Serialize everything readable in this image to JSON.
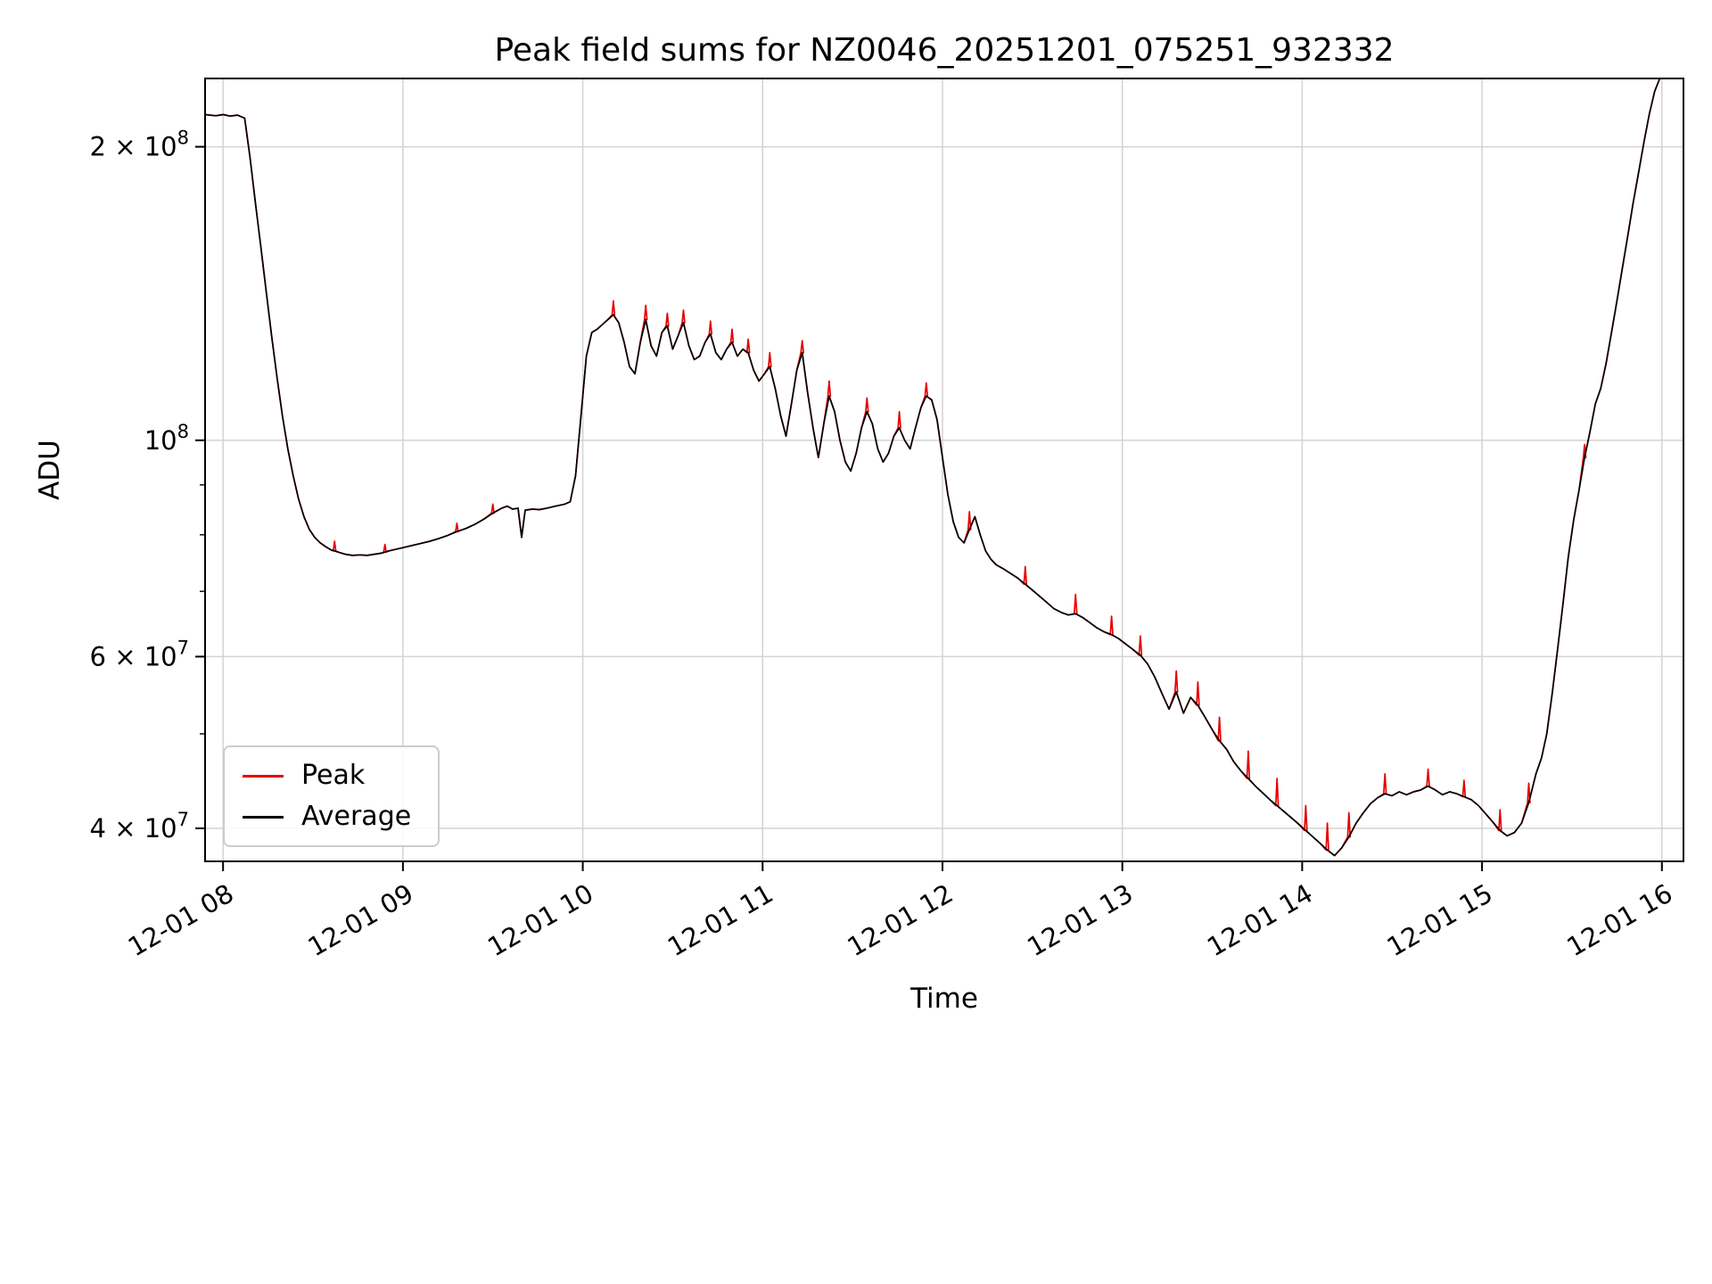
{
  "chart_data": {
    "type": "line",
    "title": "Peak field sums for NZ0046_20251201_075251_932332",
    "xlabel": "Time",
    "ylabel": "ADU",
    "log_y": true,
    "grid": true,
    "grid_color": "#d3d3d3",
    "x_unit": "decimal hours on 2025-12-01",
    "y_unit_factor": 10000000,
    "xlim": [
      7.9,
      16.12
    ],
    "ylim": [
      3.7,
      23.5
    ],
    "x_ticks": [
      {
        "v": 8,
        "label": "12-01 08"
      },
      {
        "v": 9,
        "label": "12-01 09"
      },
      {
        "v": 10,
        "label": "12-01 10"
      },
      {
        "v": 11,
        "label": "12-01 11"
      },
      {
        "v": 12,
        "label": "12-01 12"
      },
      {
        "v": 13,
        "label": "12-01 13"
      },
      {
        "v": 14,
        "label": "12-01 14"
      },
      {
        "v": 15,
        "label": "12-01 15"
      },
      {
        "v": 16,
        "label": "12-01 16"
      }
    ],
    "y_ticks": [
      {
        "v": 4,
        "mant": "4 × 10",
        "exp": "7"
      },
      {
        "v": 6,
        "mant": "6 × 10",
        "exp": "7"
      },
      {
        "v": 10,
        "mant": "10",
        "exp": "8"
      },
      {
        "v": 20,
        "mant": "2 × 10",
        "exp": "8"
      }
    ],
    "y_minor_ticks": [
      5,
      7,
      8,
      9
    ],
    "legend_entries": [
      {
        "label": "Peak",
        "color": "#e60000"
      },
      {
        "label": "Average",
        "color": "#000000"
      }
    ],
    "series": [
      {
        "name": "Average",
        "color": "#000000",
        "points": [
          [
            7.9,
            21.58
          ],
          [
            7.96,
            21.52
          ],
          [
            8.0,
            21.58
          ],
          [
            8.04,
            21.5
          ],
          [
            8.08,
            21.55
          ],
          [
            8.12,
            21.4
          ],
          [
            8.15,
            19.5
          ],
          [
            8.18,
            17.5
          ],
          [
            8.21,
            15.8
          ],
          [
            8.24,
            14.2
          ],
          [
            8.27,
            12.8
          ],
          [
            8.3,
            11.6
          ],
          [
            8.33,
            10.6
          ],
          [
            8.36,
            9.8
          ],
          [
            8.39,
            9.2
          ],
          [
            8.42,
            8.7
          ],
          [
            8.45,
            8.35
          ],
          [
            8.48,
            8.1
          ],
          [
            8.51,
            7.95
          ],
          [
            8.54,
            7.85
          ],
          [
            8.57,
            7.78
          ],
          [
            8.6,
            7.72
          ],
          [
            8.64,
            7.68
          ],
          [
            8.68,
            7.64
          ],
          [
            8.72,
            7.62
          ],
          [
            8.76,
            7.63
          ],
          [
            8.8,
            7.62
          ],
          [
            8.84,
            7.64
          ],
          [
            8.88,
            7.66
          ],
          [
            8.92,
            7.7
          ],
          [
            8.96,
            7.73
          ],
          [
            9.0,
            7.76
          ],
          [
            9.05,
            7.8
          ],
          [
            9.1,
            7.84
          ],
          [
            9.15,
            7.88
          ],
          [
            9.2,
            7.93
          ],
          [
            9.25,
            7.99
          ],
          [
            9.3,
            8.06
          ],
          [
            9.35,
            8.12
          ],
          [
            9.4,
            8.2
          ],
          [
            9.45,
            8.3
          ],
          [
            9.5,
            8.42
          ],
          [
            9.55,
            8.52
          ],
          [
            9.58,
            8.56
          ],
          [
            9.61,
            8.5
          ],
          [
            9.64,
            8.52
          ],
          [
            9.66,
            7.95
          ],
          [
            9.68,
            8.48
          ],
          [
            9.72,
            8.5
          ],
          [
            9.76,
            8.49
          ],
          [
            9.8,
            8.52
          ],
          [
            9.85,
            8.56
          ],
          [
            9.9,
            8.6
          ],
          [
            9.93,
            8.65
          ],
          [
            9.96,
            9.2
          ],
          [
            9.99,
            10.6
          ],
          [
            10.02,
            12.2
          ],
          [
            10.05,
            12.9
          ],
          [
            10.08,
            13.0
          ],
          [
            10.11,
            13.15
          ],
          [
            10.14,
            13.3
          ],
          [
            10.17,
            13.45
          ],
          [
            10.2,
            13.2
          ],
          [
            10.23,
            12.6
          ],
          [
            10.26,
            11.9
          ],
          [
            10.29,
            11.7
          ],
          [
            10.32,
            12.6
          ],
          [
            10.35,
            13.3
          ],
          [
            10.38,
            12.5
          ],
          [
            10.41,
            12.2
          ],
          [
            10.44,
            12.9
          ],
          [
            10.47,
            13.1
          ],
          [
            10.5,
            12.4
          ],
          [
            10.53,
            12.8
          ],
          [
            10.56,
            13.2
          ],
          [
            10.59,
            12.5
          ],
          [
            10.62,
            12.1
          ],
          [
            10.65,
            12.2
          ],
          [
            10.68,
            12.6
          ],
          [
            10.71,
            12.85
          ],
          [
            10.74,
            12.3
          ],
          [
            10.77,
            12.1
          ],
          [
            10.8,
            12.4
          ],
          [
            10.83,
            12.6
          ],
          [
            10.86,
            12.2
          ],
          [
            10.89,
            12.4
          ],
          [
            10.92,
            12.3
          ],
          [
            10.95,
            11.8
          ],
          [
            10.98,
            11.5
          ],
          [
            11.01,
            11.7
          ],
          [
            11.04,
            11.9
          ],
          [
            11.07,
            11.3
          ],
          [
            11.1,
            10.6
          ],
          [
            11.13,
            10.1
          ],
          [
            11.16,
            10.9
          ],
          [
            11.19,
            11.8
          ],
          [
            11.22,
            12.3
          ],
          [
            11.25,
            11.2
          ],
          [
            11.28,
            10.3
          ],
          [
            11.31,
            9.6
          ],
          [
            11.34,
            10.4
          ],
          [
            11.37,
            11.1
          ],
          [
            11.4,
            10.7
          ],
          [
            11.43,
            10.0
          ],
          [
            11.46,
            9.5
          ],
          [
            11.49,
            9.3
          ],
          [
            11.52,
            9.7
          ],
          [
            11.55,
            10.3
          ],
          [
            11.58,
            10.7
          ],
          [
            11.61,
            10.4
          ],
          [
            11.64,
            9.8
          ],
          [
            11.67,
            9.5
          ],
          [
            11.7,
            9.7
          ],
          [
            11.73,
            10.1
          ],
          [
            11.76,
            10.3
          ],
          [
            11.79,
            10.0
          ],
          [
            11.82,
            9.8
          ],
          [
            11.85,
            10.3
          ],
          [
            11.88,
            10.8
          ],
          [
            11.91,
            11.1
          ],
          [
            11.94,
            11.0
          ],
          [
            11.97,
            10.5
          ],
          [
            12.0,
            9.6
          ],
          [
            12.03,
            8.8
          ],
          [
            12.06,
            8.25
          ],
          [
            12.09,
            7.95
          ],
          [
            12.12,
            7.85
          ],
          [
            12.15,
            8.1
          ],
          [
            12.18,
            8.35
          ],
          [
            12.21,
            8.0
          ],
          [
            12.24,
            7.7
          ],
          [
            12.27,
            7.55
          ],
          [
            12.3,
            7.45
          ],
          [
            12.34,
            7.38
          ],
          [
            12.38,
            7.3
          ],
          [
            12.42,
            7.22
          ],
          [
            12.46,
            7.12
          ],
          [
            12.5,
            7.02
          ],
          [
            12.54,
            6.92
          ],
          [
            12.58,
            6.82
          ],
          [
            12.62,
            6.72
          ],
          [
            12.66,
            6.66
          ],
          [
            12.7,
            6.62
          ],
          [
            12.74,
            6.64
          ],
          [
            12.78,
            6.58
          ],
          [
            12.82,
            6.5
          ],
          [
            12.86,
            6.42
          ],
          [
            12.9,
            6.36
          ],
          [
            12.94,
            6.32
          ],
          [
            12.98,
            6.26
          ],
          [
            13.02,
            6.18
          ],
          [
            13.06,
            6.1
          ],
          [
            13.1,
            6.02
          ],
          [
            13.14,
            5.9
          ],
          [
            13.18,
            5.72
          ],
          [
            13.22,
            5.5
          ],
          [
            13.26,
            5.3
          ],
          [
            13.3,
            5.52
          ],
          [
            13.34,
            5.25
          ],
          [
            13.38,
            5.45
          ],
          [
            13.42,
            5.35
          ],
          [
            13.46,
            5.2
          ],
          [
            13.5,
            5.05
          ],
          [
            13.54,
            4.92
          ],
          [
            13.58,
            4.82
          ],
          [
            13.62,
            4.68
          ],
          [
            13.66,
            4.58
          ],
          [
            13.7,
            4.5
          ],
          [
            13.74,
            4.42
          ],
          [
            13.78,
            4.35
          ],
          [
            13.82,
            4.28
          ],
          [
            13.86,
            4.22
          ],
          [
            13.9,
            4.16
          ],
          [
            13.94,
            4.1
          ],
          [
            13.98,
            4.04
          ],
          [
            14.02,
            3.98
          ],
          [
            14.06,
            3.92
          ],
          [
            14.1,
            3.86
          ],
          [
            14.14,
            3.8
          ],
          [
            14.18,
            3.75
          ],
          [
            14.22,
            3.82
          ],
          [
            14.26,
            3.92
          ],
          [
            14.3,
            4.05
          ],
          [
            14.34,
            4.15
          ],
          [
            14.38,
            4.24
          ],
          [
            14.42,
            4.3
          ],
          [
            14.46,
            4.34
          ],
          [
            14.5,
            4.32
          ],
          [
            14.54,
            4.36
          ],
          [
            14.58,
            4.33
          ],
          [
            14.62,
            4.36
          ],
          [
            14.66,
            4.38
          ],
          [
            14.7,
            4.42
          ],
          [
            14.74,
            4.38
          ],
          [
            14.78,
            4.33
          ],
          [
            14.82,
            4.36
          ],
          [
            14.86,
            4.34
          ],
          [
            14.9,
            4.31
          ],
          [
            14.94,
            4.28
          ],
          [
            14.98,
            4.22
          ],
          [
            15.02,
            4.14
          ],
          [
            15.06,
            4.06
          ],
          [
            15.1,
            3.98
          ],
          [
            15.14,
            3.93
          ],
          [
            15.18,
            3.96
          ],
          [
            15.22,
            4.05
          ],
          [
            15.26,
            4.25
          ],
          [
            15.3,
            4.55
          ],
          [
            15.33,
            4.72
          ],
          [
            15.36,
            5.0
          ],
          [
            15.39,
            5.5
          ],
          [
            15.42,
            6.1
          ],
          [
            15.45,
            6.8
          ],
          [
            15.48,
            7.6
          ],
          [
            15.51,
            8.3
          ],
          [
            15.54,
            8.9
          ],
          [
            15.57,
            9.6
          ],
          [
            15.6,
            10.2
          ],
          [
            15.63,
            10.9
          ],
          [
            15.66,
            11.3
          ],
          [
            15.69,
            12.0
          ],
          [
            15.72,
            12.9
          ],
          [
            15.75,
            13.9
          ],
          [
            15.78,
            15.0
          ],
          [
            15.81,
            16.2
          ],
          [
            15.84,
            17.5
          ],
          [
            15.87,
            18.8
          ],
          [
            15.9,
            20.2
          ],
          [
            15.93,
            21.6
          ],
          [
            15.96,
            22.8
          ],
          [
            16.0,
            23.8
          ],
          [
            16.05,
            25.0
          ]
        ]
      }
    ],
    "peak_series": {
      "name": "Peak",
      "color": "#e60000",
      "base": "Average",
      "note": "identical to Average except narrow upward spikes listed below",
      "spikes": [
        [
          8.62,
          7.88
        ],
        [
          8.9,
          7.82
        ],
        [
          9.3,
          8.22
        ],
        [
          9.5,
          8.6
        ],
        [
          10.17,
          13.9
        ],
        [
          10.35,
          13.75
        ],
        [
          10.47,
          13.5
        ],
        [
          10.56,
          13.6
        ],
        [
          10.71,
          13.25
        ],
        [
          10.83,
          13.0
        ],
        [
          10.92,
          12.7
        ],
        [
          11.04,
          12.3
        ],
        [
          11.22,
          12.65
        ],
        [
          11.37,
          11.5
        ],
        [
          11.58,
          11.05
        ],
        [
          11.76,
          10.7
        ],
        [
          11.91,
          11.45
        ],
        [
          12.15,
          8.45
        ],
        [
          12.46,
          7.42
        ],
        [
          12.74,
          6.95
        ],
        [
          12.94,
          6.6
        ],
        [
          13.1,
          6.3
        ],
        [
          13.3,
          5.8
        ],
        [
          13.42,
          5.65
        ],
        [
          13.54,
          5.2
        ],
        [
          13.7,
          4.8
        ],
        [
          13.86,
          4.5
        ],
        [
          14.02,
          4.22
        ],
        [
          14.14,
          4.05
        ],
        [
          14.26,
          4.15
        ],
        [
          14.46,
          4.55
        ],
        [
          14.7,
          4.6
        ],
        [
          14.9,
          4.48
        ],
        [
          15.1,
          4.18
        ],
        [
          15.26,
          4.45
        ],
        [
          15.57,
          9.9
        ]
      ]
    }
  }
}
